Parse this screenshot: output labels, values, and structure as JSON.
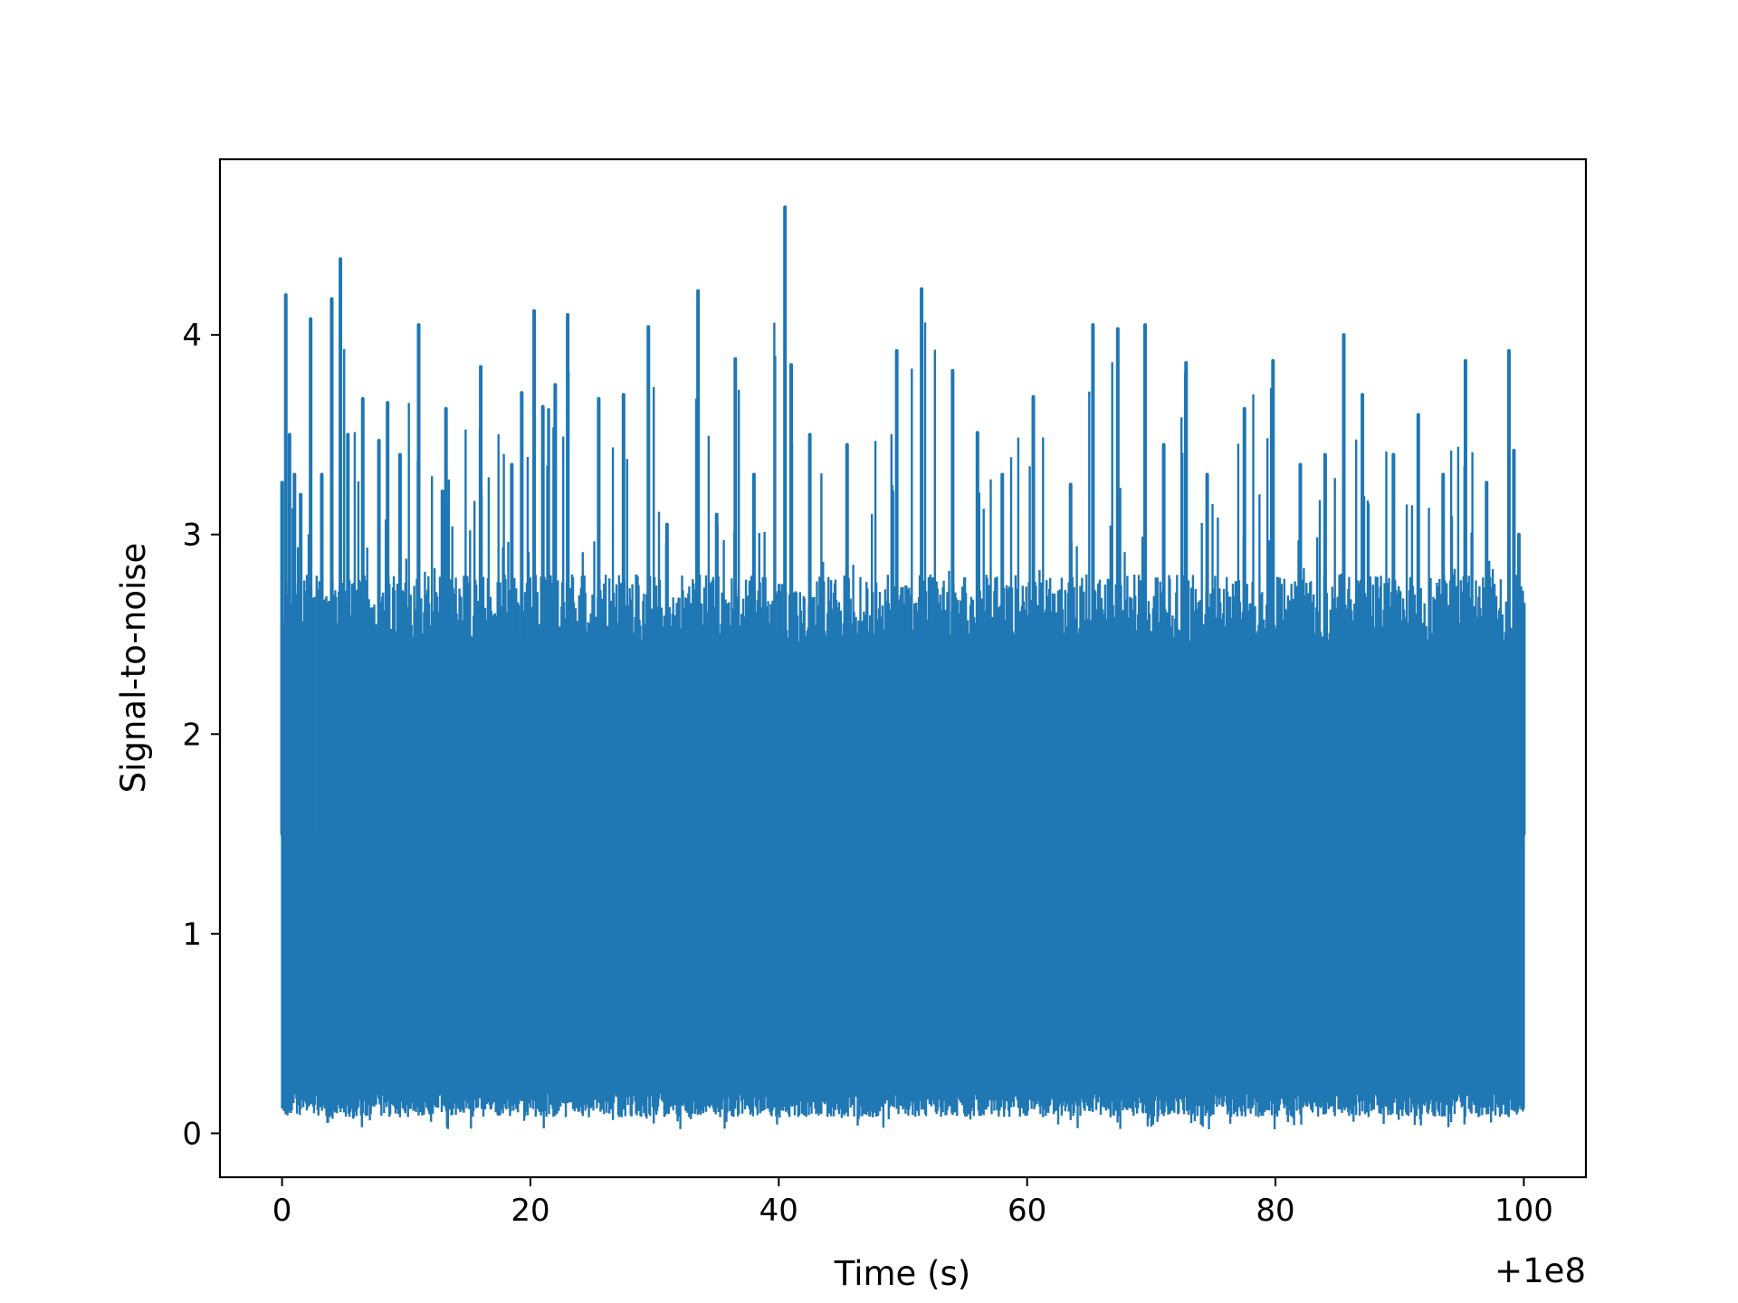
{
  "chart_data": {
    "type": "line",
    "title": "",
    "xlabel": "Time (s)",
    "ylabel": "Signal-to-noise",
    "x_offset_label": "+1e8",
    "xlim": [
      -5,
      105
    ],
    "ylim": [
      -0.22,
      4.88
    ],
    "xticks": [
      0,
      20,
      40,
      60,
      80,
      100
    ],
    "yticks": [
      0,
      1,
      2,
      3,
      4
    ],
    "x_range": [
      0,
      100
    ],
    "grid": false,
    "legend": "none",
    "line_color": "#1f77b4",
    "series": [
      {
        "values_note": "",
        "envelope_top": [
          [
            0.0,
            3.26
          ],
          [
            0.3,
            4.2
          ],
          [
            0.6,
            3.5
          ],
          [
            1.0,
            3.3
          ],
          [
            1.5,
            3.2
          ],
          [
            2.3,
            4.08
          ],
          [
            3.2,
            3.3
          ],
          [
            4.0,
            4.18
          ],
          [
            4.7,
            4.38
          ],
          [
            5.3,
            3.5
          ],
          [
            6.5,
            3.68
          ],
          [
            7.8,
            3.47
          ],
          [
            8.5,
            3.66
          ],
          [
            9.5,
            3.4
          ],
          [
            11.0,
            4.05
          ],
          [
            13.2,
            3.63
          ],
          [
            16.0,
            3.84
          ],
          [
            18.5,
            3.35
          ],
          [
            19.3,
            3.71
          ],
          [
            20.3,
            4.12
          ],
          [
            21.0,
            3.64
          ],
          [
            22.0,
            3.75
          ],
          [
            23.0,
            4.1
          ],
          [
            25.5,
            3.68
          ],
          [
            27.5,
            3.7
          ],
          [
            29.5,
            4.04
          ],
          [
            31.0,
            3.05
          ],
          [
            33.5,
            4.22
          ],
          [
            35.0,
            3.1
          ],
          [
            36.5,
            3.88
          ],
          [
            38.0,
            3.3
          ],
          [
            40.5,
            4.64
          ],
          [
            41.0,
            3.85
          ],
          [
            42.5,
            3.5
          ],
          [
            45.5,
            3.45
          ],
          [
            49.5,
            3.92
          ],
          [
            51.5,
            4.23
          ],
          [
            54.0,
            3.82
          ],
          [
            56.0,
            3.51
          ],
          [
            58.0,
            3.3
          ],
          [
            60.5,
            3.69
          ],
          [
            63.5,
            3.25
          ],
          [
            65.3,
            4.05
          ],
          [
            67.3,
            4.03
          ],
          [
            69.5,
            4.05
          ],
          [
            71.0,
            3.45
          ],
          [
            72.8,
            3.86
          ],
          [
            74.5,
            3.3
          ],
          [
            77.5,
            3.63
          ],
          [
            79.8,
            3.87
          ],
          [
            82.0,
            3.35
          ],
          [
            84.0,
            3.4
          ],
          [
            85.5,
            4.0
          ],
          [
            87.0,
            3.7
          ],
          [
            89.5,
            3.4
          ],
          [
            91.5,
            3.6
          ],
          [
            93.5,
            3.3
          ],
          [
            95.3,
            3.87
          ],
          [
            97.0,
            3.26
          ],
          [
            98.8,
            3.92
          ],
          [
            99.2,
            3.42
          ],
          [
            99.6,
            3.0
          ],
          [
            100.0,
            2.65
          ]
        ],
        "typical_max": 2.8,
        "typical_min": 0.2,
        "floor": 0.02
      }
    ]
  }
}
